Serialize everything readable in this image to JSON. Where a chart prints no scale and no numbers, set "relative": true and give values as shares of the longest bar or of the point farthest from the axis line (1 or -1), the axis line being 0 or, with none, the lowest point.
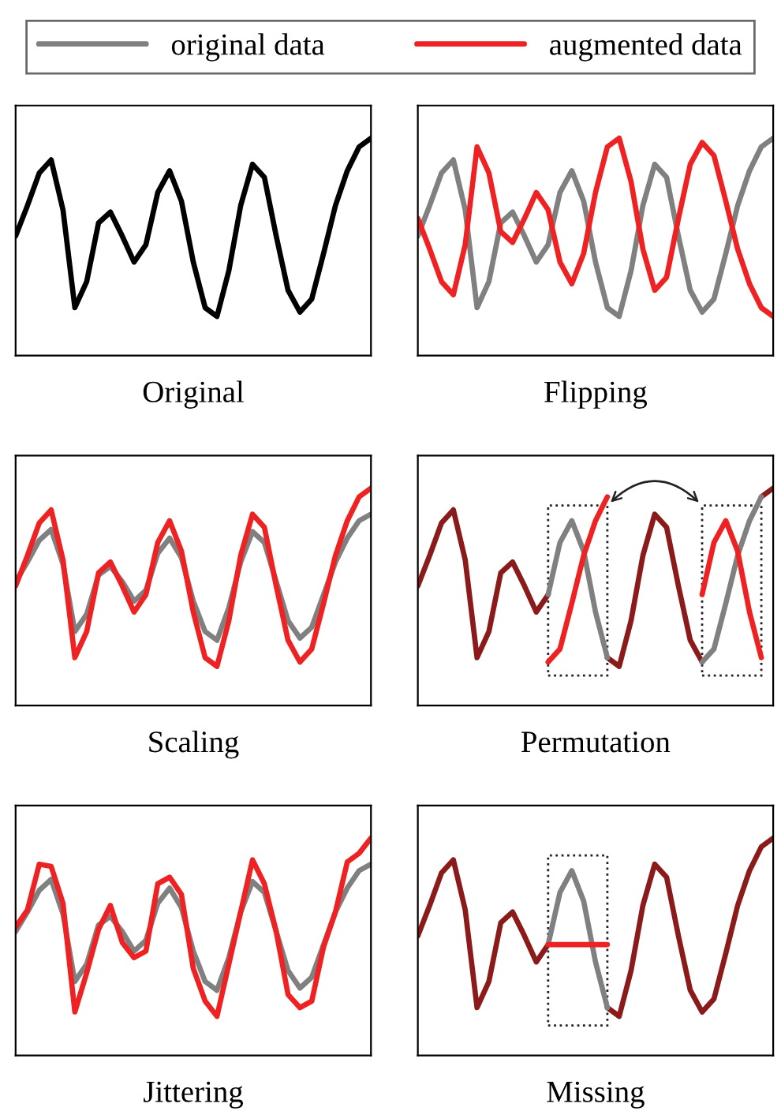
{
  "chart_data": [
    {
      "type": "line",
      "xlabel": "Original",
      "relative": true,
      "categories": [
        null,
        null,
        null,
        null,
        null,
        null,
        null,
        null,
        null,
        null,
        null,
        null,
        null,
        null,
        null,
        null,
        null,
        null,
        null,
        null,
        null,
        null,
        null,
        null,
        null,
        null,
        null,
        null,
        null,
        null,
        null
      ],
      "series": [
        {
          "color": "#000000",
          "values": [
            0.55,
            0.69,
            0.84,
            0.9,
            0.67,
            0.22,
            0.34,
            0.61,
            0.66,
            0.55,
            0.43,
            0.51,
            0.75,
            0.85,
            0.71,
            0.43,
            0.22,
            0.18,
            0.39,
            0.69,
            0.88,
            0.82,
            0.55,
            0.3,
            0.2,
            0.26,
            0.47,
            0.69,
            0.85,
            0.96,
            1.0
          ]
        }
      ]
    },
    {
      "type": "line",
      "xlabel": "Flipping",
      "relative": true,
      "legend": "top",
      "categories": [
        null,
        null,
        null,
        null,
        null,
        null,
        null,
        null,
        null,
        null,
        null,
        null,
        null,
        null,
        null,
        null,
        null,
        null,
        null,
        null,
        null,
        null,
        null,
        null,
        null,
        null,
        null,
        null,
        null,
        null,
        null
      ],
      "series": [
        {
          "name": "original data",
          "color": "#808080",
          "values": [
            0.55,
            0.69,
            0.84,
            0.9,
            0.67,
            0.22,
            0.34,
            0.61,
            0.66,
            0.55,
            0.43,
            0.51,
            0.75,
            0.85,
            0.71,
            0.43,
            0.22,
            0.18,
            0.39,
            0.69,
            0.88,
            0.82,
            0.55,
            0.3,
            0.2,
            0.26,
            0.47,
            0.69,
            0.85,
            0.96,
            1.0
          ]
        },
        {
          "name": "augmented data",
          "color": "#ee2222",
          "values": [
            0.63,
            0.49,
            0.34,
            0.28,
            0.51,
            0.96,
            0.84,
            0.57,
            0.52,
            0.63,
            0.75,
            0.67,
            0.43,
            0.33,
            0.47,
            0.75,
            0.96,
            1.0,
            0.8,
            0.49,
            0.3,
            0.36,
            0.63,
            0.88,
            0.98,
            0.92,
            0.71,
            0.49,
            0.33,
            0.22,
            0.18
          ]
        }
      ]
    },
    {
      "type": "line",
      "xlabel": "Scaling",
      "relative": true,
      "categories": [
        null,
        null,
        null,
        null,
        null,
        null,
        null,
        null,
        null,
        null,
        null,
        null,
        null,
        null,
        null,
        null,
        null,
        null,
        null,
        null,
        null,
        null,
        null,
        null,
        null,
        null,
        null,
        null,
        null,
        null,
        null
      ],
      "series": [
        {
          "color": "#808080",
          "values": [
            0.57,
            0.66,
            0.76,
            0.81,
            0.65,
            0.34,
            0.42,
            0.6,
            0.64,
            0.57,
            0.48,
            0.53,
            0.7,
            0.77,
            0.68,
            0.48,
            0.34,
            0.3,
            0.45,
            0.66,
            0.8,
            0.75,
            0.57,
            0.39,
            0.31,
            0.36,
            0.51,
            0.66,
            0.77,
            0.85,
            0.88
          ]
        },
        {
          "color": "#ee2222",
          "values": [
            0.55,
            0.69,
            0.84,
            0.9,
            0.67,
            0.22,
            0.34,
            0.61,
            0.66,
            0.55,
            0.43,
            0.51,
            0.75,
            0.85,
            0.71,
            0.43,
            0.22,
            0.18,
            0.39,
            0.69,
            0.88,
            0.82,
            0.55,
            0.3,
            0.2,
            0.26,
            0.47,
            0.69,
            0.85,
            0.96,
            1.0
          ]
        }
      ]
    },
    {
      "type": "line",
      "xlabel": "Permutation",
      "relative": true,
      "categories": [
        null,
        null,
        null,
        null,
        null,
        null,
        null,
        null,
        null,
        null,
        null,
        null,
        null,
        null,
        null,
        null,
        null,
        null,
        null,
        null,
        null,
        null,
        null,
        null,
        null,
        null,
        null,
        null,
        null,
        null,
        null
      ],
      "series": [
        {
          "color": "#8b1a1a",
          "values": [
            0.55,
            0.69,
            0.84,
            0.9,
            0.67,
            0.22,
            0.34,
            0.61,
            0.66,
            0.55,
            0.43,
            0.51,
            null,
            null,
            null,
            null,
            0.22,
            0.18,
            0.39,
            0.69,
            0.88,
            0.82,
            0.55,
            0.3,
            0.2,
            null,
            null,
            null,
            null,
            0.96,
            1.0
          ]
        },
        {
          "color": "#808080",
          "values": [
            null,
            null,
            null,
            null,
            null,
            null,
            null,
            null,
            null,
            null,
            null,
            0.51,
            0.75,
            0.85,
            0.71,
            0.43,
            0.22,
            null,
            null,
            null,
            null,
            null,
            null,
            null,
            0.2,
            0.26,
            0.47,
            0.69,
            0.85,
            0.96,
            null
          ]
        },
        {
          "color": "#ee2222",
          "values": [
            null,
            null,
            null,
            null,
            null,
            null,
            null,
            null,
            null,
            null,
            null,
            0.2,
            0.26,
            0.47,
            0.69,
            0.85,
            0.96,
            null,
            null,
            null,
            null,
            null,
            null,
            null,
            0.51,
            0.75,
            0.85,
            0.71,
            0.43,
            0.22,
            null
          ]
        }
      ]
    },
    {
      "type": "line",
      "xlabel": "Jittering",
      "relative": true,
      "categories": [
        null,
        null,
        null,
        null,
        null,
        null,
        null,
        null,
        null,
        null,
        null,
        null,
        null,
        null,
        null,
        null,
        null,
        null,
        null,
        null,
        null,
        null,
        null,
        null,
        null,
        null,
        null,
        null,
        null,
        null,
        null
      ],
      "series": [
        {
          "color": "#808080",
          "values": [
            0.57,
            0.66,
            0.76,
            0.81,
            0.65,
            0.34,
            0.42,
            0.6,
            0.64,
            0.57,
            0.48,
            0.53,
            0.7,
            0.77,
            0.68,
            0.48,
            0.34,
            0.3,
            0.45,
            0.66,
            0.8,
            0.75,
            0.57,
            0.39,
            0.31,
            0.36,
            0.51,
            0.66,
            0.77,
            0.85,
            0.88
          ]
        },
        {
          "color": "#ee2222",
          "values": [
            0.59,
            0.67,
            0.88,
            0.87,
            0.7,
            0.2,
            0.38,
            0.58,
            0.69,
            0.52,
            0.45,
            0.48,
            0.79,
            0.82,
            0.74,
            0.4,
            0.25,
            0.18,
            0.42,
            0.66,
            0.9,
            0.79,
            0.57,
            0.28,
            0.22,
            0.25,
            0.5,
            0.66,
            0.89,
            0.93,
            1.0
          ]
        }
      ]
    },
    {
      "type": "line",
      "xlabel": "Missing",
      "relative": true,
      "categories": [
        null,
        null,
        null,
        null,
        null,
        null,
        null,
        null,
        null,
        null,
        null,
        null,
        null,
        null,
        null,
        null,
        null,
        null,
        null,
        null,
        null,
        null,
        null,
        null,
        null,
        null,
        null,
        null,
        null,
        null,
        null
      ],
      "series": [
        {
          "color": "#8b1a1a",
          "values": [
            0.55,
            0.69,
            0.84,
            0.9,
            0.67,
            0.22,
            0.34,
            0.61,
            0.66,
            0.55,
            0.43,
            0.51,
            null,
            null,
            null,
            null,
            0.22,
            0.18,
            0.39,
            0.69,
            0.88,
            0.82,
            0.55,
            0.3,
            0.2,
            0.26,
            0.47,
            0.69,
            0.85,
            0.96,
            1.0
          ]
        },
        {
          "color": "#808080",
          "values": [
            null,
            null,
            null,
            null,
            null,
            null,
            null,
            null,
            null,
            null,
            null,
            0.51,
            0.75,
            0.85,
            0.71,
            0.43,
            0.22,
            null,
            null,
            null,
            null,
            null,
            null,
            null,
            null,
            null,
            null,
            null,
            null,
            null,
            null
          ]
        },
        {
          "color": "#ee2222",
          "values": [
            null,
            null,
            null,
            null,
            null,
            null,
            null,
            null,
            null,
            null,
            null,
            0.51,
            0.51,
            0.51,
            0.51,
            0.51,
            0.51,
            null,
            null,
            null,
            null,
            null,
            null,
            null,
            null,
            null,
            null,
            null,
            null,
            null,
            null
          ]
        }
      ]
    }
  ]
}
